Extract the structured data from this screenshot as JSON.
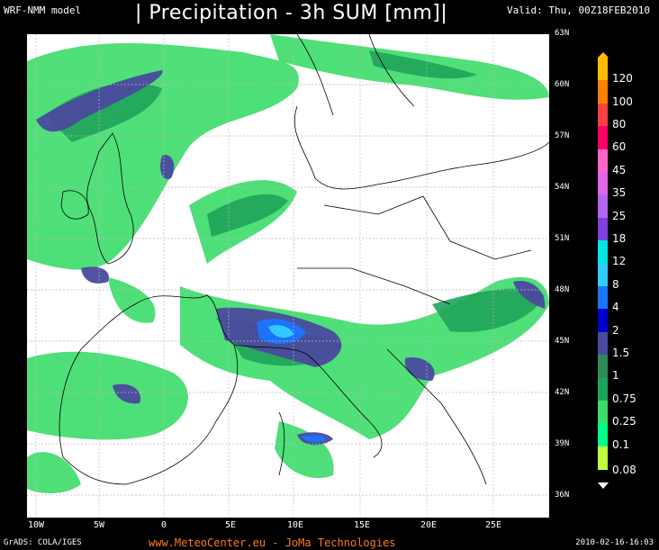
{
  "header": {
    "model": "WRF-NMM model",
    "title": "| Precipitation - 3h SUM [mm]|",
    "valid": "Valid: Thu, 00Z18FEB2010"
  },
  "map": {
    "lat_labels": [
      "63N",
      "60N",
      "57N",
      "54N",
      "51N",
      "48N",
      "45N",
      "42N",
      "39N",
      "36N"
    ],
    "lon_labels": [
      "10W",
      "5W",
      "0",
      "5E",
      "10E",
      "15E",
      "20E",
      "25E"
    ]
  },
  "legend": {
    "labels": [
      "120",
      "100",
      "80",
      "60",
      "45",
      "35",
      "25",
      "18",
      "12",
      "8",
      "4",
      "2",
      "1.5",
      "1",
      "0.75",
      "0.25",
      "0.1",
      "0.08"
    ],
    "colors": [
      "#ffbf00",
      "#ff7f00",
      "#ff4040",
      "#ff0066",
      "#ff66cc",
      "#e066e6",
      "#b366f0",
      "#8040e0",
      "#00e6e6",
      "#33ccff",
      "#1a75ff",
      "#0000cc",
      "#4a4a9e",
      "#2e8b57",
      "#1fa35a",
      "#3ddc6a",
      "#00ff88",
      "#bfff40"
    ],
    "top_color": "#ffbf00",
    "bottom_color": "#ffffff"
  },
  "footer": {
    "left": "GrADS: COLA/IGES",
    "center": "www.MeteoCenter.eu  -  JoMa Technologies",
    "right": "2010-02-16-16:03"
  }
}
